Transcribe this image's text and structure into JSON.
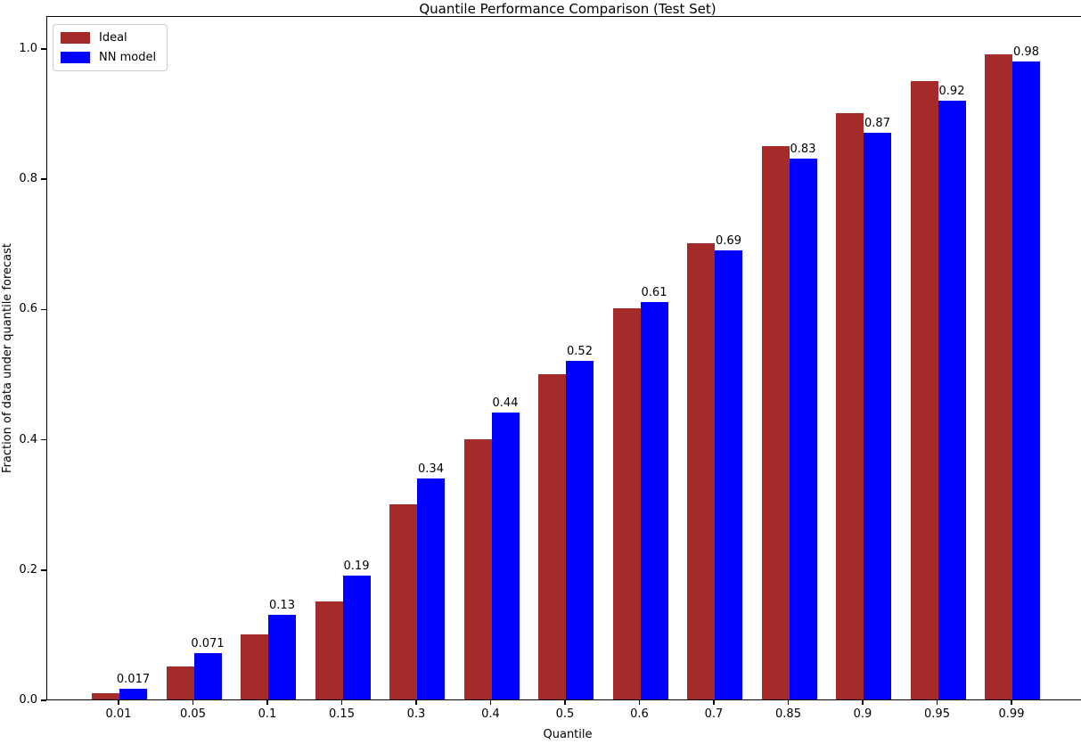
{
  "figure": {
    "title": "Quantile Performance Comparison (Test Set)",
    "xlabel": "Quantile",
    "ylabel": "Fraction of data under quantile forecast"
  },
  "legend": {
    "position": "upper left",
    "items": [
      {
        "label": "Ideal",
        "color": "#A52A2A"
      },
      {
        "label": "NN model",
        "color": "#0000FF"
      }
    ]
  },
  "chart_data": {
    "type": "bar",
    "title": "Quantile Performance Comparison (Test Set)",
    "xlabel": "Quantile",
    "ylabel": "Fraction of data under quantile forecast",
    "categories": [
      "0.01",
      "0.05",
      "0.1",
      "0.15",
      "0.3",
      "0.4",
      "0.5",
      "0.6",
      "0.7",
      "0.85",
      "0.9",
      "0.95",
      "0.99"
    ],
    "series": [
      {
        "name": "Ideal",
        "color": "#A52A2A",
        "values": [
          0.01,
          0.05,
          0.1,
          0.15,
          0.3,
          0.4,
          0.5,
          0.6,
          0.7,
          0.85,
          0.9,
          0.95,
          0.99
        ]
      },
      {
        "name": "NN model",
        "color": "#0000FF",
        "values": [
          0.017,
          0.071,
          0.13,
          0.19,
          0.34,
          0.44,
          0.52,
          0.61,
          0.69,
          0.83,
          0.87,
          0.92,
          0.98
        ]
      }
    ],
    "bar_labels": [
      "0.017",
      "0.071",
      "0.13",
      "0.19",
      "0.34",
      "0.44",
      "0.52",
      "0.61",
      "0.69",
      "0.83",
      "0.87",
      "0.92",
      "0.98"
    ],
    "bar_labels_on_series": "NN model",
    "yticks": [
      0.0,
      0.2,
      0.4,
      0.6,
      0.8,
      1.0
    ],
    "ytick_labels": [
      "0.0",
      "0.2",
      "0.4",
      "0.6",
      "0.8",
      "1.0"
    ],
    "ylim": [
      0,
      1.05
    ],
    "grid": false,
    "legend_position": "upper left"
  }
}
